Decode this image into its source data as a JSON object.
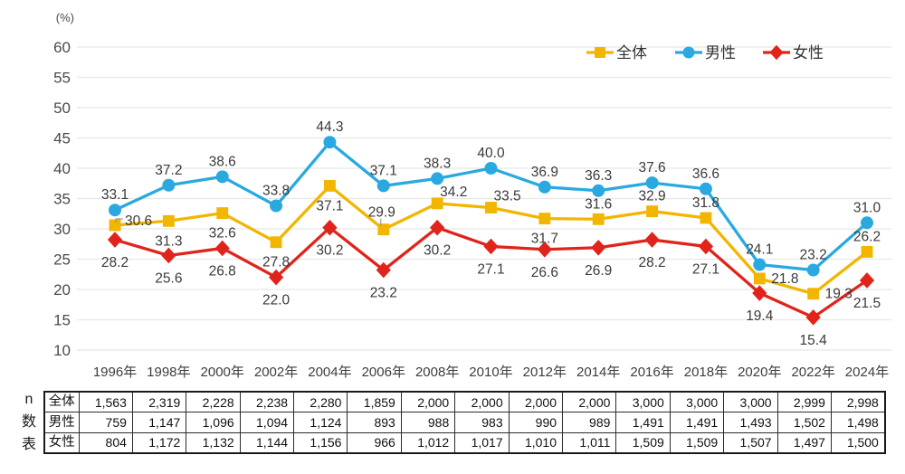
{
  "chart_data": {
    "type": "line",
    "title": "",
    "ylabel": "(%)",
    "xlabel": "",
    "ylim": [
      10,
      60
    ],
    "yticks": [
      10,
      15,
      20,
      25,
      30,
      35,
      40,
      45,
      50,
      55,
      60
    ],
    "grid": true,
    "legend_position": "top-right",
    "categories": [
      "1996年",
      "1998年",
      "2000年",
      "2002年",
      "2004年",
      "2006年",
      "2008年",
      "2010年",
      "2012年",
      "2014年",
      "2016年",
      "2018年",
      "2020年",
      "2022年",
      "2024年"
    ],
    "series": [
      {
        "key": "total",
        "name": "全体",
        "color": "#F2B600",
        "marker": "square",
        "values": [
          30.6,
          31.3,
          32.6,
          27.8,
          37.1,
          29.9,
          34.2,
          33.5,
          31.7,
          31.6,
          32.9,
          31.8,
          21.8,
          19.3,
          26.2
        ],
        "label_pos": [
          "right-leader",
          "below",
          "below",
          "below",
          "below",
          "above-leader",
          "above-right",
          "above-right",
          "below",
          "above",
          "above",
          "above",
          "right",
          "right",
          "above"
        ]
      },
      {
        "key": "male",
        "name": "男性",
        "color": "#29A9E0",
        "marker": "circle",
        "values": [
          33.1,
          37.2,
          38.6,
          33.8,
          44.3,
          37.1,
          38.3,
          40.0,
          36.9,
          36.3,
          37.6,
          36.6,
          24.1,
          23.2,
          31.0
        ],
        "label_pos": [
          "above",
          "above",
          "above",
          "above",
          "above",
          "above",
          "above",
          "above",
          "above",
          "above",
          "above",
          "above",
          "above",
          "above",
          "above"
        ]
      },
      {
        "key": "female",
        "name": "女性",
        "color": "#E0241B",
        "marker": "diamond",
        "values": [
          28.2,
          25.6,
          26.8,
          22.0,
          30.2,
          23.2,
          30.2,
          27.1,
          26.6,
          26.9,
          28.2,
          27.1,
          19.4,
          15.4,
          21.5
        ],
        "label_pos": [
          "below",
          "below",
          "below",
          "below",
          "below",
          "below",
          "below",
          "below",
          "below",
          "below",
          "below",
          "below",
          "below",
          "below",
          "below"
        ]
      }
    ]
  },
  "table": {
    "corner_label": "n数表",
    "corner_chars": [
      "n",
      "数",
      "表"
    ],
    "rows": [
      {
        "key": "total",
        "label": "全体",
        "values": [
          "1,563",
          "2,319",
          "2,228",
          "2,238",
          "2,280",
          "1,859",
          "2,000",
          "2,000",
          "2,000",
          "2,000",
          "3,000",
          "3,000",
          "3,000",
          "2,999",
          "2,998"
        ]
      },
      {
        "key": "male",
        "label": "男性",
        "values": [
          "759",
          "1,147",
          "1,096",
          "1,094",
          "1,124",
          "893",
          "988",
          "983",
          "990",
          "989",
          "1,491",
          "1,491",
          "1,493",
          "1,502",
          "1,498"
        ]
      },
      {
        "key": "female",
        "label": "女性",
        "values": [
          "804",
          "1,172",
          "1,132",
          "1,144",
          "1,156",
          "966",
          "1,012",
          "1,017",
          "1,010",
          "1,011",
          "1,509",
          "1,509",
          "1,507",
          "1,497",
          "1,500"
        ]
      }
    ]
  },
  "style": {
    "grid_color": "#E8E8E8",
    "tick_color": "#4a4a4a",
    "data_label_color": "#3a3a3a",
    "legend_text_color": "#333333",
    "leader_color": "#8a8a8a"
  }
}
